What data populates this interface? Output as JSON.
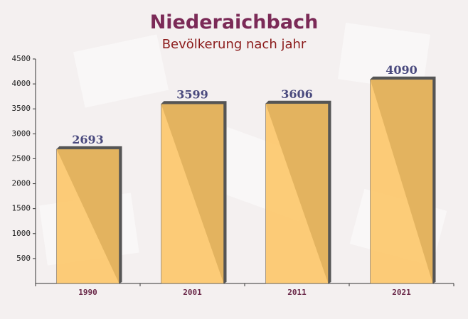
{
  "chart_data": {
    "type": "bar",
    "title": "Niederaichbach",
    "subtitle": "Bevölkerung nach jahr",
    "categories": [
      "1990",
      "2001",
      "2011",
      "2021"
    ],
    "values": [
      2693,
      3599,
      3606,
      4090
    ],
    "color": "#fdc461",
    "ylim": [
      0,
      4500
    ],
    "yticks": [
      500,
      1000,
      1500,
      2000,
      2500,
      3000,
      3500,
      4000,
      4500
    ]
  }
}
